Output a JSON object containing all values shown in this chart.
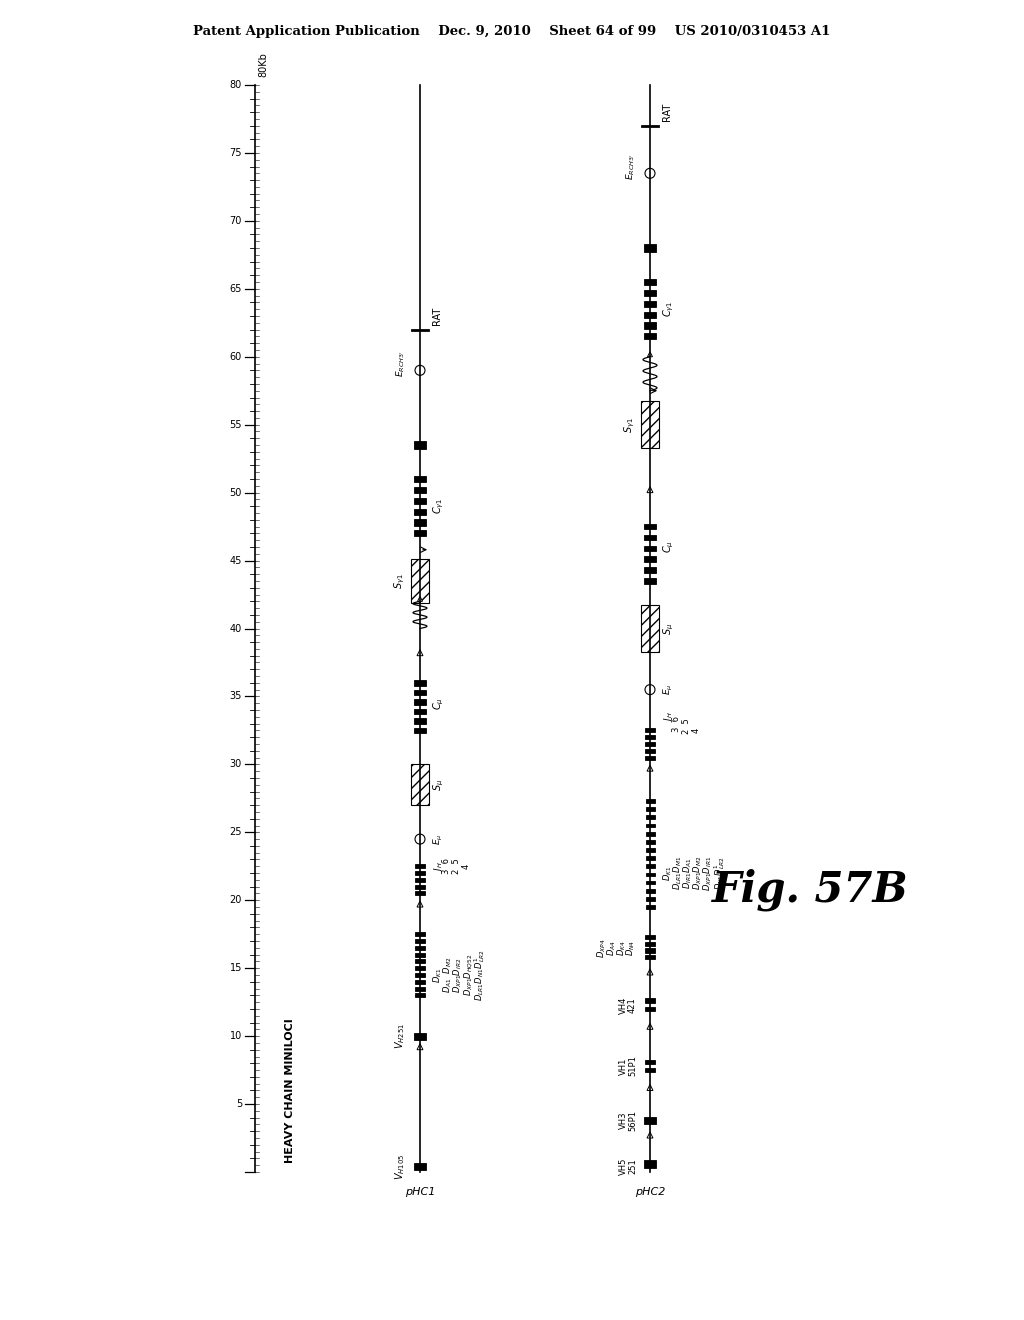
{
  "header": "Patent Application Publication    Dec. 9, 2010    Sheet 64 of 99    US 2010/0310453 A1",
  "fig_label": "Fig. 57B",
  "section_label": "HEAVY CHAIN MINILOCI",
  "bg_color": "#ffffff"
}
